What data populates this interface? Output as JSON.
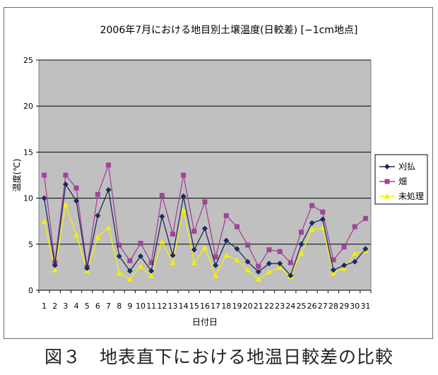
{
  "chart_data": {
    "type": "line",
    "title": "2006年7月における地目別土壌温度(日較差) [−1cm地点]",
    "xlabel": "日付日",
    "ylabel": "温度(℃)",
    "ylim": [
      0,
      25
    ],
    "yticks": [
      0,
      5,
      10,
      15,
      20,
      25
    ],
    "grid": true,
    "legend": "right",
    "plot_background": "#c0c0c0",
    "categories": [
      "1",
      "2",
      "3",
      "4",
      "5",
      "6",
      "7",
      "8",
      "9",
      "10",
      "11",
      "12",
      "13",
      "14",
      "15",
      "16",
      "17",
      "18",
      "19",
      "20",
      "21",
      "22",
      "23",
      "24",
      "25",
      "26",
      "27",
      "28",
      "29",
      "30",
      "31"
    ],
    "series": [
      {
        "name": "刈払",
        "color": "#1f2a5c",
        "marker": "diamond",
        "values": [
          10.0,
          2.7,
          11.5,
          9.7,
          2.4,
          8.1,
          10.9,
          3.7,
          2.1,
          3.7,
          2.1,
          8.0,
          3.8,
          10.2,
          4.4,
          6.7,
          2.7,
          5.4,
          4.5,
          3.1,
          2.0,
          2.9,
          2.9,
          1.6,
          5.0,
          7.3,
          7.7,
          2.2,
          2.7,
          3.1,
          4.5
        ]
      },
      {
        "name": "畑",
        "color": "#a0449a",
        "marker": "square",
        "values": [
          12.5,
          3.0,
          12.5,
          11.1,
          2.5,
          10.4,
          13.6,
          4.9,
          3.2,
          5.1,
          3.0,
          10.3,
          6.1,
          12.5,
          6.4,
          9.6,
          3.6,
          8.1,
          6.9,
          4.9,
          2.6,
          4.4,
          4.2,
          3.0,
          6.3,
          9.2,
          8.5,
          3.3,
          4.7,
          6.9,
          7.8
        ]
      },
      {
        "name": "未処理",
        "color": "#f2f200",
        "marker": "triangle",
        "values": [
          7.5,
          2.2,
          9.3,
          6.0,
          2.1,
          5.8,
          6.8,
          1.9,
          1.2,
          2.6,
          1.6,
          5.3,
          3.0,
          8.7,
          3.0,
          4.6,
          1.6,
          3.8,
          3.3,
          2.2,
          1.2,
          2.0,
          2.5,
          1.5,
          4.0,
          6.6,
          6.8,
          1.9,
          2.4,
          4.0,
          4.3
        ]
      }
    ]
  },
  "caption": "図３　地表直下における地温日較差の比較"
}
